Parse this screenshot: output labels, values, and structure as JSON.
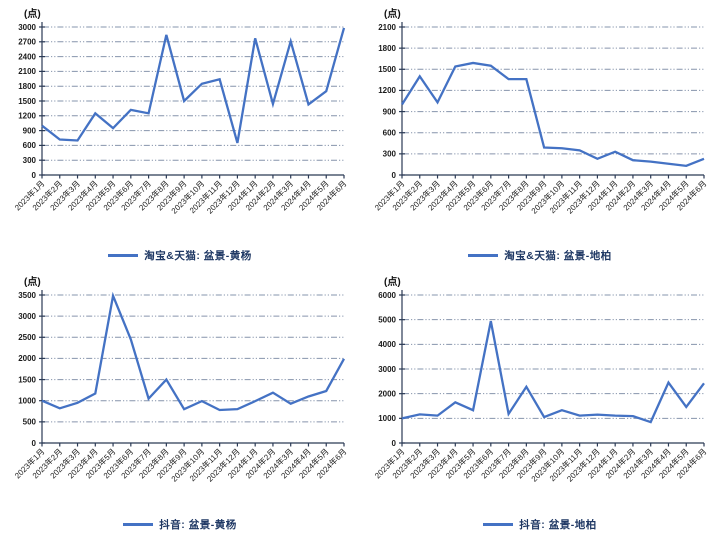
{
  "chart_data": {
    "type": "line",
    "unit": "(点)",
    "line_color": "#4472C4",
    "gridline_color": "#8694AC",
    "axis_color": "#2B3A55",
    "legend_position": "bottom-center",
    "grid": "horizontal-dash-dot",
    "x_categories": [
      "2023年1月",
      "2023年2月",
      "2023年3月",
      "2023年4月",
      "2023年5月",
      "2023年6月",
      "2023年7月",
      "2023年8月",
      "2023年9月",
      "2023年10月",
      "2023年11月",
      "2023年12月",
      "2024年1月",
      "2024年2月",
      "2024年3月",
      "2024年4月",
      "2024年5月",
      "2024年6月"
    ],
    "charts": [
      {
        "legend": "淘宝&天猫: 盆景-黄杨",
        "ylim": [
          0,
          3000
        ],
        "ystep": 300,
        "values": [
          1000,
          720,
          700,
          1250,
          950,
          1320,
          1250,
          2840,
          1500,
          1850,
          1940,
          650,
          2770,
          1440,
          2710,
          1430,
          1700,
          2980
        ]
      },
      {
        "legend": "淘宝&天猫: 盆景-地柏",
        "ylim": [
          0,
          2100
        ],
        "ystep": 300,
        "values": [
          1000,
          1400,
          1030,
          1540,
          1590,
          1550,
          1360,
          1360,
          390,
          380,
          350,
          230,
          330,
          210,
          190,
          160,
          130,
          230
        ]
      },
      {
        "legend": "抖音: 盆景-黄杨",
        "ylim": [
          0,
          3500
        ],
        "ystep": 500,
        "values": [
          1000,
          820,
          950,
          1170,
          3480,
          2450,
          1050,
          1500,
          800,
          990,
          780,
          800,
          990,
          1190,
          930,
          1100,
          1230,
          1990
        ]
      },
      {
        "legend": "抖音: 盆景-地柏",
        "ylim": [
          0,
          6000
        ],
        "ystep": 1000,
        "values": [
          1000,
          1160,
          1110,
          1650,
          1330,
          4940,
          1180,
          2280,
          1050,
          1330,
          1110,
          1150,
          1110,
          1090,
          850,
          2450,
          1460,
          2420
        ]
      }
    ]
  }
}
